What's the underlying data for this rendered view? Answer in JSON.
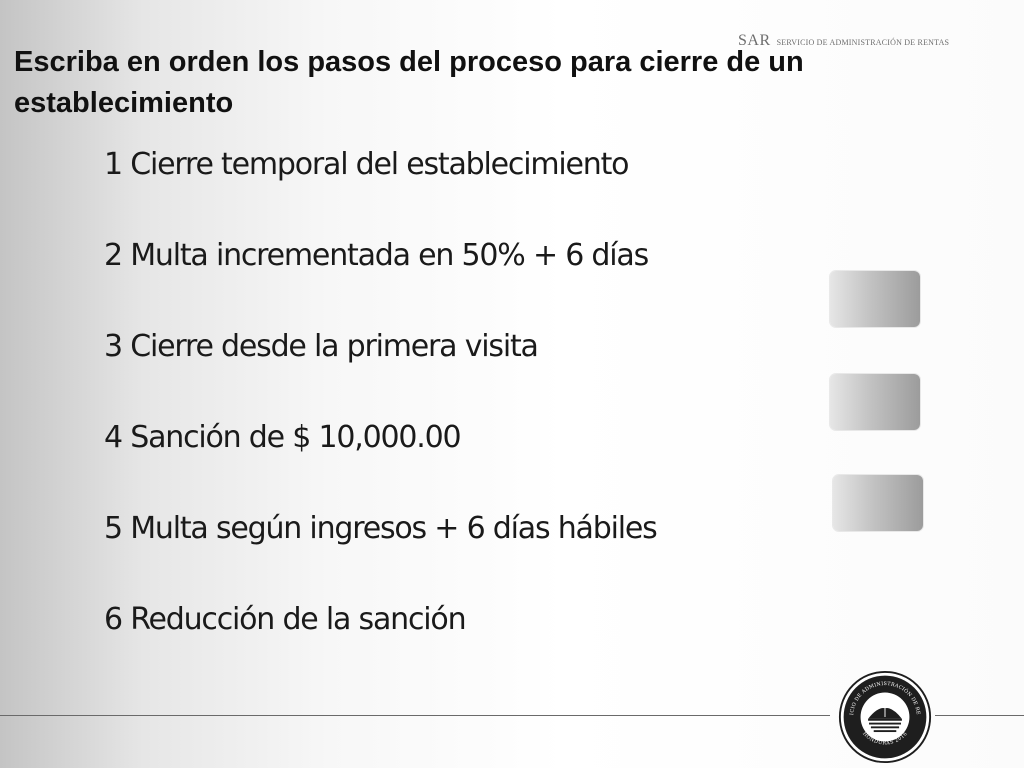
{
  "header": {
    "brand_abbr": "SAR",
    "brand_full": "SERVICIO DE ADMINISTRACIÓN DE RENTAS"
  },
  "title": "Escriba en orden los pasos del proceso para cierre de un establecimiento",
  "steps": [
    "1 Cierre temporal del establecimiento",
    "2 Multa incrementada en 50% + 6 días",
    "3 Cierre desde la primera visita",
    "4 Sanción de $ 10,000.00",
    "5 Multa según ingresos + 6 días hábiles",
    "6 Reducción de la sanción"
  ],
  "seal": {
    "ring_text": "SERVICIO DE ADMINISTRACIÓN DE RENTAS",
    "bottom_text": "HONDURAS 2016"
  },
  "colors": {
    "title": "#111111",
    "text": "#1a1a1a",
    "seal_dark": "#1e1e1e"
  }
}
